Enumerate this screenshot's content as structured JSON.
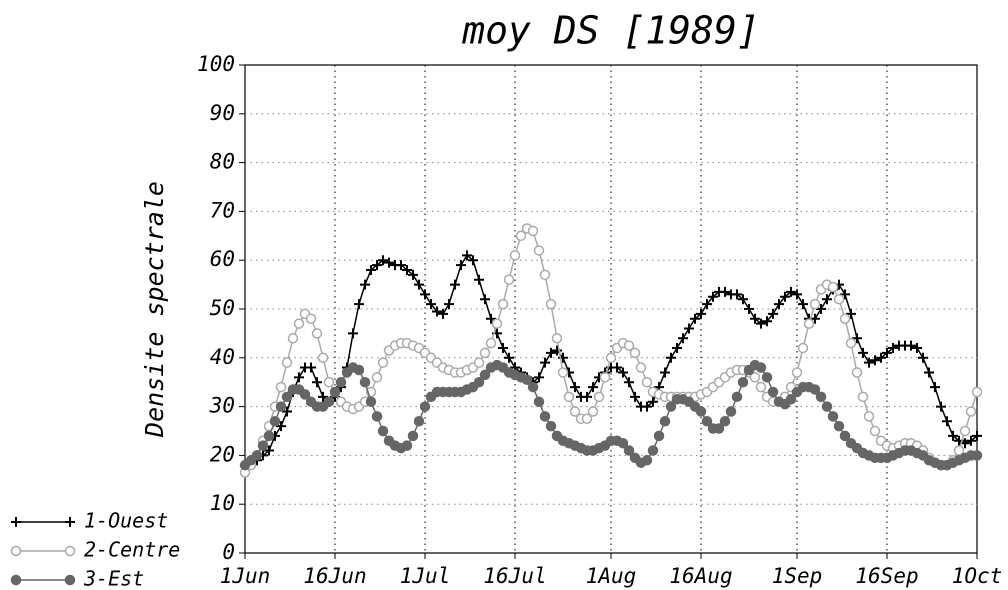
{
  "chart_data": {
    "type": "line",
    "title": "moy DS [1989]",
    "y_label": "Densite spectrale",
    "categories": [
      "1Jun",
      "2Jun",
      "3Jun",
      "4Jun",
      "5Jun",
      "6Jun",
      "7Jun",
      "8Jun",
      "9Jun",
      "10Jun",
      "11Jun",
      "12Jun",
      "13Jun",
      "14Jun",
      "15Jun",
      "16Jun",
      "17Jun",
      "18Jun",
      "19Jun",
      "20Jun",
      "21Jun",
      "22Jun",
      "23Jun",
      "24Jun",
      "25Jun",
      "26Jun",
      "27Jun",
      "28Jun",
      "29Jun",
      "30Jun",
      "1Jul",
      "2Jul",
      "3Jul",
      "4Jul",
      "5Jul",
      "6Jul",
      "7Jul",
      "8Jul",
      "9Jul",
      "10Jul",
      "11Jul",
      "12Jul",
      "13Jul",
      "14Jul",
      "15Jul",
      "16Jul",
      "17Jul",
      "18Jul",
      "19Jul",
      "20Jul",
      "21Jul",
      "22Jul",
      "23Jul",
      "24Jul",
      "25Jul",
      "26Jul",
      "27Jul",
      "28Jul",
      "29Jul",
      "30Jul",
      "31Jul",
      "1Aug",
      "2Aug",
      "3Aug",
      "4Aug",
      "5Aug",
      "6Aug",
      "7Aug",
      "8Aug",
      "9Aug",
      "10Aug",
      "11Aug",
      "12Aug",
      "13Aug",
      "14Aug",
      "15Aug",
      "16Aug",
      "17Aug",
      "18Aug",
      "19Aug",
      "20Aug",
      "21Aug",
      "22Aug",
      "23Aug",
      "24Aug",
      "25Aug",
      "26Aug",
      "27Aug",
      "28Aug",
      "29Aug",
      "30Aug",
      "31Aug",
      "1Sep",
      "2Sep",
      "3Sep",
      "4Sep",
      "5Sep",
      "6Sep",
      "7Sep",
      "8Sep",
      "9Sep",
      "10Sep",
      "11Sep",
      "12Sep",
      "13Sep",
      "14Sep",
      "15Sep",
      "16Sep",
      "17Sep",
      "18Sep",
      "19Sep",
      "20Sep",
      "21Sep",
      "22Sep",
      "23Sep",
      "24Sep",
      "25Sep",
      "26Sep",
      "27Sep",
      "28Sep",
      "29Sep",
      "30Sep",
      "1Oct"
    ],
    "xticks": [
      "1Jun",
      "16Jun",
      "1Jul",
      "16Jul",
      "1Aug",
      "16Aug",
      "1Sep",
      "16Sep",
      "1Oct"
    ],
    "ylim": [
      0,
      100
    ],
    "yticks": [
      0,
      10,
      20,
      30,
      40,
      50,
      60,
      70,
      80,
      90,
      100
    ],
    "grid": true,
    "series": [
      {
        "name": "1-Ouest",
        "color": "#000000",
        "marker": "plus",
        "values": [
          18,
          18,
          19,
          20,
          21,
          24,
          26,
          29,
          33,
          36,
          38,
          38,
          35,
          32,
          31,
          32,
          34,
          38,
          45,
          51,
          55,
          58,
          59,
          60,
          59.5,
          59,
          59,
          58,
          57,
          55,
          53,
          51,
          49.5,
          49,
          51,
          55,
          59,
          61,
          60,
          56,
          52,
          48,
          45,
          42,
          40,
          38,
          37,
          36,
          35,
          36,
          39,
          41,
          41.5,
          40,
          37,
          34,
          32,
          32,
          34,
          36,
          37,
          38,
          38,
          37,
          35,
          32,
          30,
          30,
          31,
          34,
          37,
          40,
          42,
          44,
          46,
          48,
          49,
          51,
          52.5,
          53.5,
          53.5,
          53,
          53,
          52,
          50,
          48,
          47,
          47.5,
          49,
          51,
          52.5,
          53.5,
          53,
          51,
          48,
          48,
          50,
          52,
          54,
          55,
          53,
          49,
          44,
          41,
          39,
          39.5,
          40,
          41,
          42,
          42.5,
          42.5,
          42.5,
          42,
          40,
          37,
          34,
          30,
          27,
          24,
          23,
          22.5,
          23,
          24
        ]
      },
      {
        "name": "2-Centre",
        "color": "#aaaaaa",
        "marker": "open-circle",
        "values": [
          16.5,
          18,
          20,
          23,
          26,
          30,
          34,
          39,
          44,
          47,
          49,
          48,
          45,
          40,
          35,
          33,
          31,
          30,
          29.5,
          30,
          31,
          33,
          36,
          39,
          41.5,
          42.5,
          43,
          43,
          42.5,
          42,
          41,
          40,
          39,
          38,
          37.5,
          37,
          37,
          37.5,
          38,
          39,
          41,
          43,
          47,
          51,
          56,
          61,
          65,
          66.5,
          66,
          62,
          57,
          51,
          44,
          37,
          32,
          29,
          27.5,
          27.5,
          29,
          32,
          36,
          40,
          42,
          43,
          42.5,
          41,
          38,
          35,
          33,
          32.5,
          32,
          32,
          32,
          32,
          32,
          32,
          32.5,
          33,
          34,
          35,
          36,
          37,
          37.5,
          37.5,
          37,
          36,
          34,
          32,
          31,
          31,
          32,
          34,
          37,
          42,
          47,
          51,
          54,
          55,
          54.5,
          52,
          48,
          43,
          37,
          32,
          28,
          25,
          23,
          22,
          21.5,
          22,
          22.5,
          22.5,
          22,
          21,
          19.5,
          18.5,
          18,
          18,
          19,
          21,
          25,
          29,
          33
        ]
      },
      {
        "name": "3-Est",
        "color": "#666666",
        "marker": "filled-circle",
        "values": [
          18,
          19,
          20,
          22,
          24,
          27,
          30,
          32,
          33.5,
          33.5,
          32.5,
          31,
          30,
          30,
          31,
          33,
          35,
          37,
          38,
          37.5,
          35,
          31,
          28,
          25,
          23,
          22,
          21.5,
          22,
          24,
          27,
          30,
          32,
          33,
          33,
          33,
          33,
          33,
          33.5,
          34,
          35,
          36.5,
          38,
          38.5,
          38,
          37,
          36.5,
          36,
          35.5,
          34,
          31,
          28,
          26,
          24,
          23,
          22.5,
          22,
          21.5,
          21,
          21,
          21.5,
          22,
          23,
          23,
          22.5,
          21,
          19.5,
          18.5,
          19,
          21,
          24,
          27,
          30,
          31.5,
          31.5,
          31,
          30,
          29,
          27,
          25.5,
          25.5,
          27,
          29,
          32,
          35,
          37.5,
          38.5,
          38,
          36,
          33,
          31,
          30.5,
          31.5,
          33,
          34,
          34,
          33.5,
          32,
          30,
          28,
          26,
          24,
          22.5,
          21.5,
          20.5,
          20,
          19.5,
          19.5,
          19.5,
          20,
          20.5,
          21,
          21,
          20.5,
          20,
          19,
          18.5,
          18,
          18,
          18.5,
          19,
          19.5,
          20,
          20
        ]
      }
    ]
  }
}
